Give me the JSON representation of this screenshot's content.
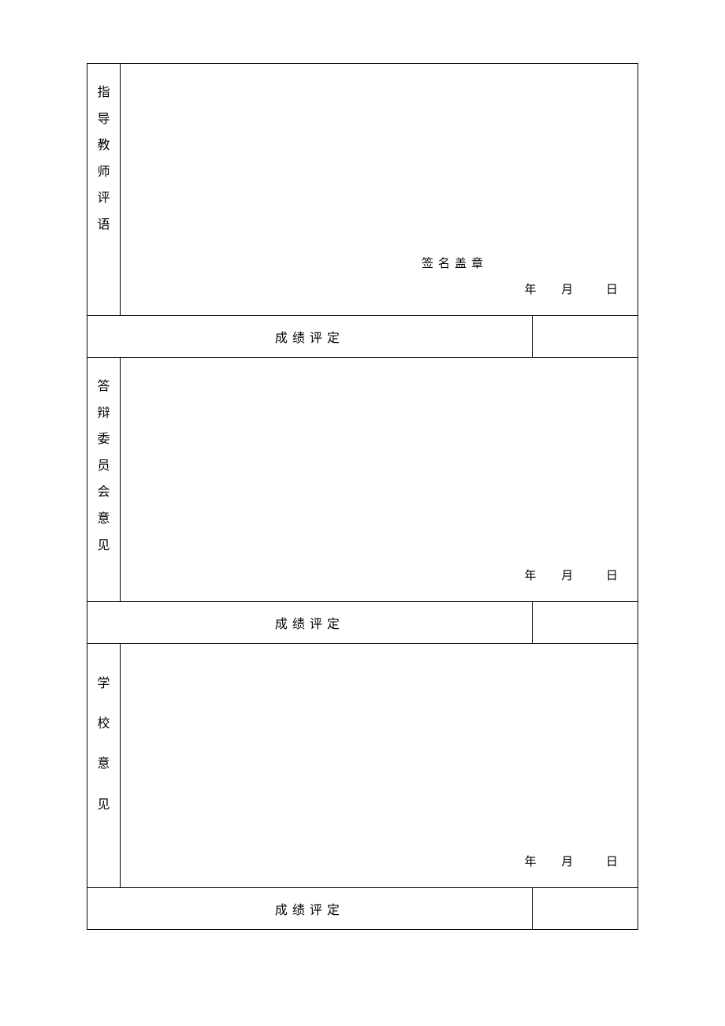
{
  "sections": [
    {
      "label": "指导教师评语",
      "signature_label": "签名盖章",
      "date_year": "年",
      "date_month": "月",
      "date_day": "日",
      "has_signature": true
    },
    {
      "label": "答辩委员会意见",
      "date_year": "年",
      "date_month": "月",
      "date_day": "日",
      "has_signature": false
    },
    {
      "label": "学校意见",
      "date_year": "年",
      "date_month": "月",
      "date_day": "日",
      "has_signature": false
    }
  ],
  "grade_label": "成绩评定",
  "styling": {
    "border_color": "#000000",
    "background_color": "#ffffff",
    "text_color": "#000000",
    "font_family": "SimSun",
    "label_fontsize": 16,
    "vertical_label_width": 42,
    "grade_label_width": 155,
    "section_heights": [
      320,
      310,
      310
    ],
    "grade_row_height": 50,
    "vertical_line_height": 2.1,
    "vertical_wide_line_height": 3.2
  }
}
